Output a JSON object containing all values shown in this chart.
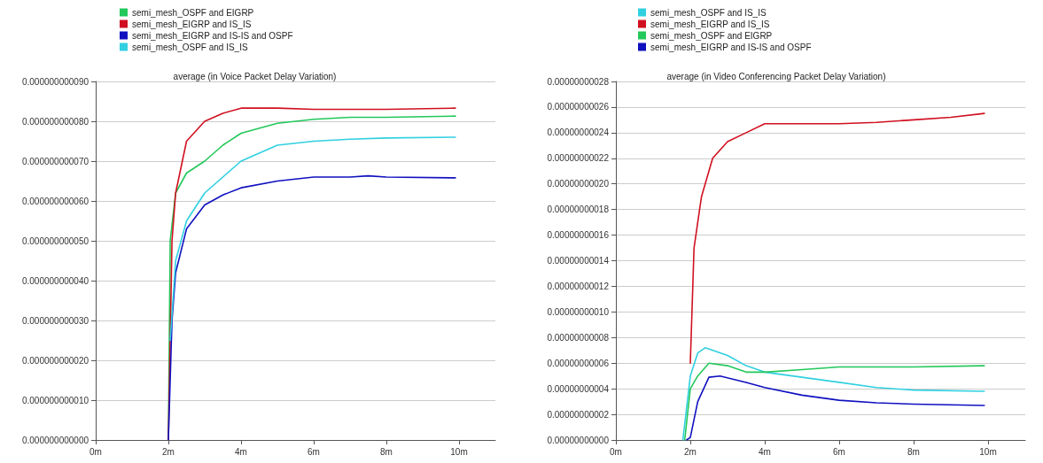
{
  "chart_data": [
    {
      "type": "line",
      "title": "average (in Voice Packet Delay Variation)",
      "legend": "top",
      "grid": "y",
      "marker": "none",
      "line_style": "solid",
      "xlim": [
        0,
        11
      ],
      "xticks": [
        {
          "value": 0,
          "label": "0m"
        },
        {
          "value": 2,
          "label": "2m"
        },
        {
          "value": 4,
          "label": "4m"
        },
        {
          "value": 6,
          "label": "6m"
        },
        {
          "value": 8,
          "label": "8m"
        },
        {
          "value": 10,
          "label": "10m"
        }
      ],
      "ylim": [
        0,
        9e-11
      ],
      "yticks": [
        {
          "value": 0,
          "label": "0.000000000000"
        },
        {
          "value": 1e-11,
          "label": "0.000000000010"
        },
        {
          "value": 2e-11,
          "label": "0.000000000020"
        },
        {
          "value": 3e-11,
          "label": "0.000000000030"
        },
        {
          "value": 4e-11,
          "label": "0.000000000040"
        },
        {
          "value": 5e-11,
          "label": "0.000000000050"
        },
        {
          "value": 6e-11,
          "label": "0.000000000060"
        },
        {
          "value": 7e-11,
          "label": "0.000000000070"
        },
        {
          "value": 8e-11,
          "label": "0.000000000080"
        },
        {
          "value": 9e-11,
          "label": "0.000000000090"
        }
      ],
      "series": [
        {
          "name": "semi_mesh_OSPF and EIGRP",
          "color": "#22c85a",
          "x": [
            2,
            2.05,
            2.2,
            2.5,
            3,
            3.5,
            4,
            5,
            6,
            7,
            8,
            9.9
          ],
          "values": [
            0,
            5e-11,
            6.2e-11,
            6.7e-11,
            7e-11,
            7.4e-11,
            7.7e-11,
            7.95e-11,
            8.05e-11,
            8.1e-11,
            8.1e-11,
            8.13e-11
          ]
        },
        {
          "name": "semi_mesh_EIGRP and IS_IS",
          "color": "#d01020",
          "x": [
            2,
            2.1,
            2.2,
            2.5,
            3,
            3.5,
            4,
            5,
            6,
            7,
            8,
            9.9
          ],
          "values": [
            0,
            5e-11,
            6.2e-11,
            7.5e-11,
            8e-11,
            8.2e-11,
            8.33e-11,
            8.33e-11,
            8.3e-11,
            8.3e-11,
            8.3e-11,
            8.33e-11
          ]
        },
        {
          "name": "semi_mesh_EIGRP and IS-IS and OSPF",
          "color": "#1010c0",
          "x": [
            2,
            2.1,
            2.2,
            2.5,
            3,
            3.5,
            4,
            5,
            6,
            7,
            7.5,
            8,
            9.9
          ],
          "values": [
            0,
            3e-11,
            4.2e-11,
            5.3e-11,
            5.9e-11,
            6.15e-11,
            6.33e-11,
            6.5e-11,
            6.6e-11,
            6.6e-11,
            6.63e-11,
            6.6e-11,
            6.58e-11
          ]
        },
        {
          "name": "semi_mesh_OSPF and IS_IS",
          "color": "#30d0e0",
          "x": [
            2.05,
            2.2,
            2.5,
            3,
            4,
            5,
            6,
            7,
            8,
            9.9
          ],
          "values": [
            2.5e-11,
            4.5e-11,
            5.5e-11,
            6.2e-11,
            7e-11,
            7.4e-11,
            7.5e-11,
            7.55e-11,
            7.58e-11,
            7.6e-11
          ]
        }
      ]
    },
    {
      "type": "line",
      "title": "average (in Video Conferencing Packet Delay Variation)",
      "legend": "top",
      "grid": "y",
      "marker": "none",
      "line_style": "solid",
      "xlim": [
        0,
        11
      ],
      "xticks": [
        {
          "value": 0,
          "label": "0m"
        },
        {
          "value": 2,
          "label": "2m"
        },
        {
          "value": 4,
          "label": "4m"
        },
        {
          "value": 6,
          "label": "6m"
        },
        {
          "value": 8,
          "label": "8m"
        },
        {
          "value": 10,
          "label": "10m"
        }
      ],
      "ylim": [
        0,
        2.8e-10
      ],
      "yticks": [
        {
          "value": 0,
          "label": "0.00000000000"
        },
        {
          "value": 2e-11,
          "label": "0.00000000002"
        },
        {
          "value": 4e-11,
          "label": "0.00000000004"
        },
        {
          "value": 6e-11,
          "label": "0.00000000006"
        },
        {
          "value": 8e-11,
          "label": "0.00000000008"
        },
        {
          "value": 1e-10,
          "label": "0.00000000010"
        },
        {
          "value": 1.2e-10,
          "label": "0.00000000012"
        },
        {
          "value": 1.4e-10,
          "label": "0.00000000014"
        },
        {
          "value": 1.6e-10,
          "label": "0.00000000016"
        },
        {
          "value": 1.8e-10,
          "label": "0.00000000018"
        },
        {
          "value": 2e-10,
          "label": "0.00000000020"
        },
        {
          "value": 2.2e-10,
          "label": "0.00000000022"
        },
        {
          "value": 2.4e-10,
          "label": "0.00000000024"
        },
        {
          "value": 2.6e-10,
          "label": "0.00000000026"
        },
        {
          "value": 2.8e-10,
          "label": "0.00000000028"
        }
      ],
      "series": [
        {
          "name": "semi_mesh_OSPF and IS_IS",
          "color": "#30d0e0",
          "x": [
            1.8,
            2,
            2.2,
            2.4,
            3,
            3.5,
            4,
            5,
            6,
            7,
            8,
            9.9
          ],
          "values": [
            0,
            5e-11,
            6.8e-11,
            7.2e-11,
            6.6e-11,
            5.8e-11,
            5.3e-11,
            4.9e-11,
            4.5e-11,
            4.1e-11,
            3.9e-11,
            3.8e-11
          ]
        },
        {
          "name": "semi_mesh_EIGRP and IS_IS",
          "color": "#d01020",
          "x": [
            2,
            2.1,
            2.3,
            2.6,
            3,
            3.5,
            4,
            5,
            6,
            7,
            8,
            9,
            9.9
          ],
          "values": [
            6e-11,
            1.5e-10,
            1.9e-10,
            2.2e-10,
            2.33e-10,
            2.4e-10,
            2.47e-10,
            2.47e-10,
            2.47e-10,
            2.48e-10,
            2.5e-10,
            2.52e-10,
            2.55e-10
          ]
        },
        {
          "name": "semi_mesh_OSPF and EIGRP",
          "color": "#22c85a",
          "x": [
            1.85,
            2,
            2.2,
            2.5,
            3,
            3.5,
            4,
            5,
            6,
            7,
            8,
            9.9
          ],
          "values": [
            0,
            4e-11,
            5e-11,
            6e-11,
            5.8e-11,
            5.3e-11,
            5.3e-11,
            5.5e-11,
            5.7e-11,
            5.7e-11,
            5.7e-11,
            5.8e-11
          ]
        },
        {
          "name": "semi_mesh_EIGRP and IS-IS and OSPF",
          "color": "#1010c0",
          "x": [
            1.9,
            2,
            2.2,
            2.5,
            2.8,
            3.5,
            4,
            5,
            6,
            7,
            8,
            9.9
          ],
          "values": [
            0,
            2e-12,
            3e-11,
            4.9e-11,
            5e-11,
            4.5e-11,
            4.1e-11,
            3.5e-11,
            3.1e-11,
            2.9e-11,
            2.8e-11,
            2.7e-11
          ]
        }
      ]
    }
  ]
}
